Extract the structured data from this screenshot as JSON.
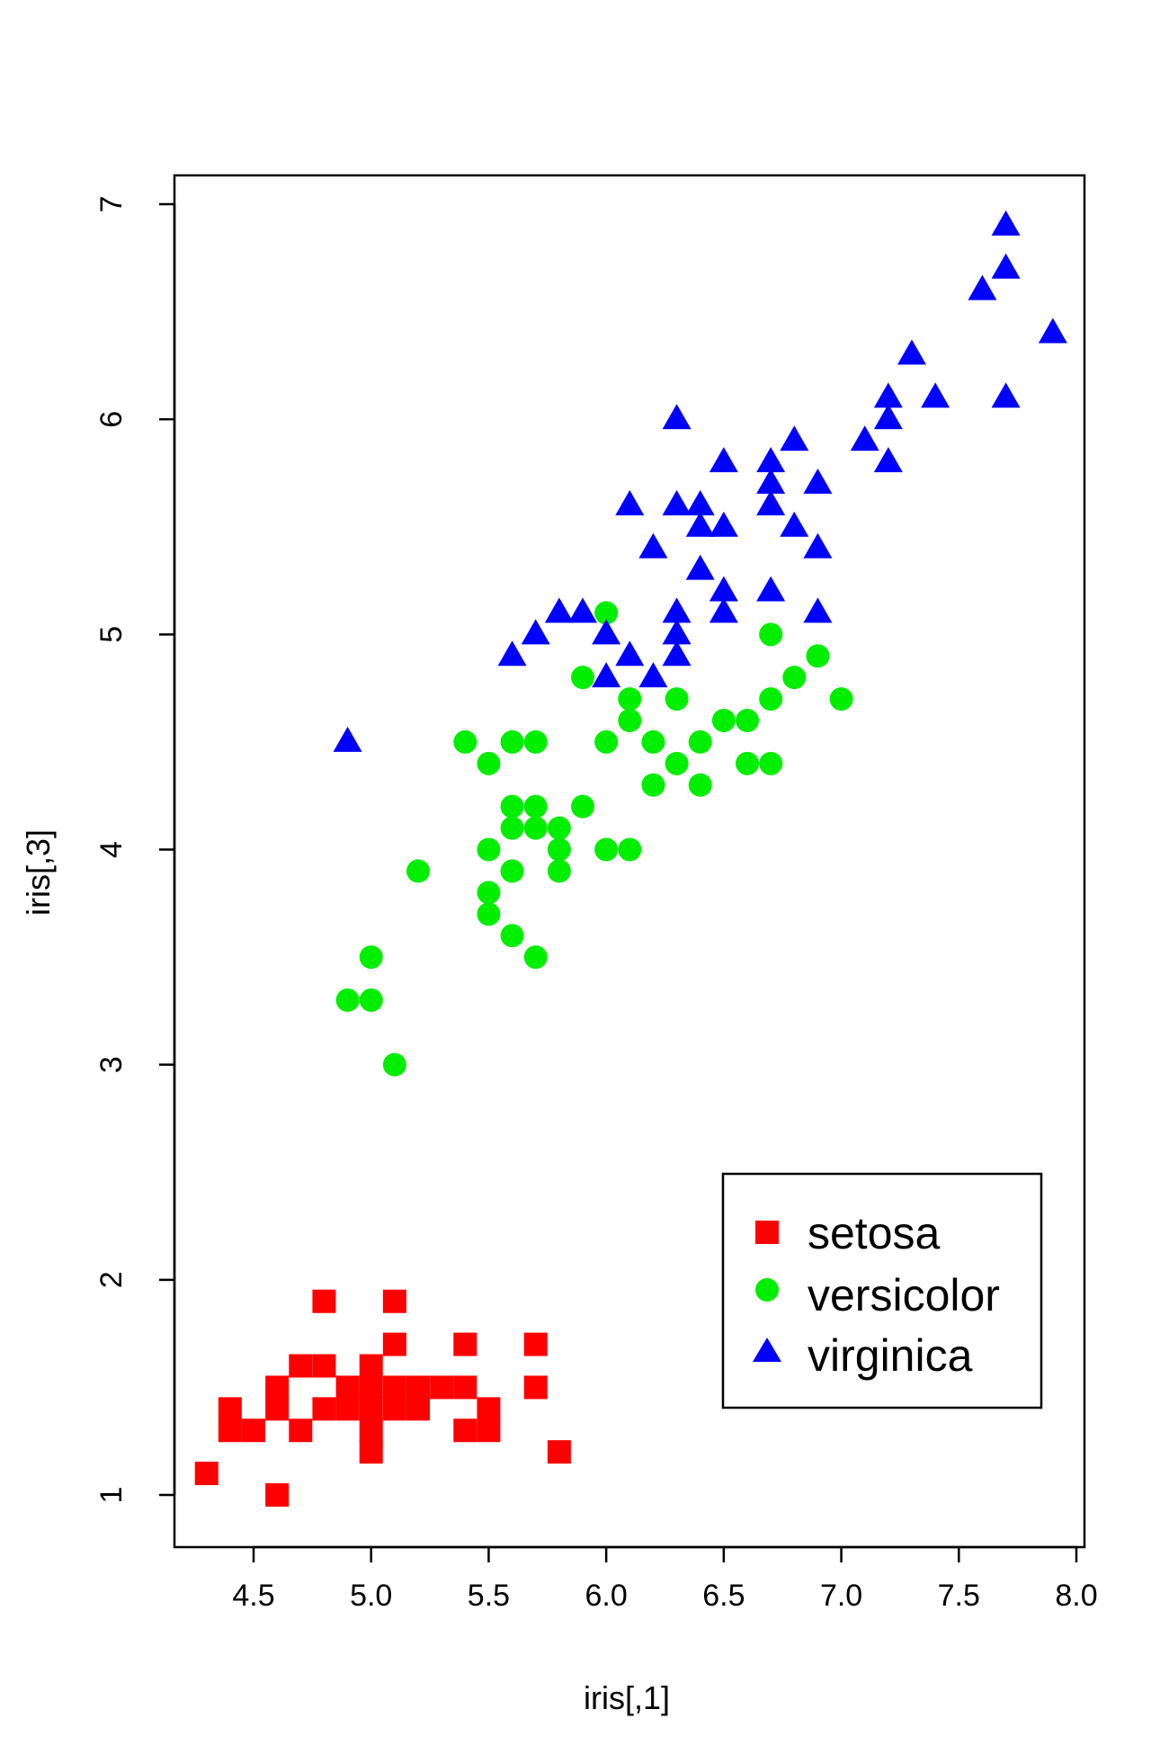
{
  "chart_data": {
    "type": "scatter",
    "title": "",
    "xlabel": "iris[,1]",
    "ylabel": "iris[,3]",
    "xlim": [
      4.2,
      8.0
    ],
    "ylim": [
      0.8,
      7.1
    ],
    "x_ticks": [
      4.5,
      5.0,
      5.5,
      6.0,
      6.5,
      7.0,
      7.5,
      8.0
    ],
    "x_tick_labels": [
      "4.5",
      "5.0",
      "5.5",
      "6.0",
      "6.5",
      "7.0",
      "7.5",
      "8.0"
    ],
    "y_ticks": [
      1,
      2,
      3,
      4,
      5,
      6,
      7
    ],
    "y_tick_labels": [
      "1",
      "2",
      "3",
      "4",
      "5",
      "6",
      "7"
    ],
    "grid": false,
    "legend_position": "bottom-right",
    "series": [
      {
        "name": "setosa",
        "marker": "square",
        "color": "#ff0000",
        "points": [
          [
            4.3,
            1.1
          ],
          [
            4.4,
            1.4
          ],
          [
            4.4,
            1.3
          ],
          [
            4.5,
            1.3
          ],
          [
            4.6,
            1.0
          ],
          [
            4.6,
            1.4
          ],
          [
            4.6,
            1.5
          ],
          [
            4.7,
            1.3
          ],
          [
            4.7,
            1.6
          ],
          [
            4.8,
            1.4
          ],
          [
            4.8,
            1.6
          ],
          [
            4.8,
            1.9
          ],
          [
            4.9,
            1.4
          ],
          [
            4.9,
            1.5
          ],
          [
            5.0,
            1.2
          ],
          [
            5.0,
            1.3
          ],
          [
            5.0,
            1.4
          ],
          [
            5.0,
            1.5
          ],
          [
            5.0,
            1.6
          ],
          [
            5.1,
            1.4
          ],
          [
            5.1,
            1.5
          ],
          [
            5.1,
            1.7
          ],
          [
            5.1,
            1.9
          ],
          [
            5.2,
            1.4
          ],
          [
            5.2,
            1.5
          ],
          [
            5.3,
            1.5
          ],
          [
            5.4,
            1.3
          ],
          [
            5.4,
            1.5
          ],
          [
            5.4,
            1.7
          ],
          [
            5.5,
            1.3
          ],
          [
            5.5,
            1.4
          ],
          [
            5.7,
            1.5
          ],
          [
            5.7,
            1.7
          ],
          [
            5.8,
            1.2
          ]
        ]
      },
      {
        "name": "versicolor",
        "marker": "circle",
        "color": "#00ee00",
        "points": [
          [
            4.9,
            3.3
          ],
          [
            5.0,
            3.3
          ],
          [
            5.0,
            3.5
          ],
          [
            5.1,
            3.0
          ],
          [
            5.2,
            3.9
          ],
          [
            5.4,
            4.5
          ],
          [
            5.5,
            3.7
          ],
          [
            5.5,
            3.8
          ],
          [
            5.5,
            4.0
          ],
          [
            5.5,
            4.4
          ],
          [
            5.6,
            3.6
          ],
          [
            5.6,
            3.9
          ],
          [
            5.6,
            4.1
          ],
          [
            5.6,
            4.2
          ],
          [
            5.6,
            4.5
          ],
          [
            5.7,
            3.5
          ],
          [
            5.7,
            4.1
          ],
          [
            5.7,
            4.2
          ],
          [
            5.7,
            4.5
          ],
          [
            5.8,
            3.9
          ],
          [
            5.8,
            4.0
          ],
          [
            5.8,
            4.1
          ],
          [
            5.9,
            4.2
          ],
          [
            5.9,
            4.8
          ],
          [
            6.0,
            4.0
          ],
          [
            6.0,
            4.5
          ],
          [
            6.0,
            5.1
          ],
          [
            6.1,
            4.0
          ],
          [
            6.1,
            4.6
          ],
          [
            6.1,
            4.7
          ],
          [
            6.2,
            4.3
          ],
          [
            6.2,
            4.5
          ],
          [
            6.3,
            4.4
          ],
          [
            6.3,
            4.7
          ],
          [
            6.4,
            4.3
          ],
          [
            6.4,
            4.5
          ],
          [
            6.5,
            4.6
          ],
          [
            6.6,
            4.4
          ],
          [
            6.6,
            4.6
          ],
          [
            6.7,
            4.4
          ],
          [
            6.7,
            4.7
          ],
          [
            6.7,
            5.0
          ],
          [
            6.8,
            4.8
          ],
          [
            6.9,
            4.9
          ],
          [
            7.0,
            4.7
          ]
        ]
      },
      {
        "name": "virginica",
        "marker": "triangle",
        "color": "#0000ff",
        "points": [
          [
            4.9,
            4.5
          ],
          [
            5.6,
            4.9
          ],
          [
            5.7,
            5.0
          ],
          [
            5.8,
            5.1
          ],
          [
            5.9,
            5.1
          ],
          [
            6.0,
            4.8
          ],
          [
            6.0,
            5.0
          ],
          [
            6.1,
            4.9
          ],
          [
            6.1,
            5.6
          ],
          [
            6.2,
            4.8
          ],
          [
            6.2,
            5.4
          ],
          [
            6.3,
            4.9
          ],
          [
            6.3,
            5.0
          ],
          [
            6.3,
            5.1
          ],
          [
            6.3,
            5.6
          ],
          [
            6.3,
            6.0
          ],
          [
            6.4,
            5.3
          ],
          [
            6.4,
            5.5
          ],
          [
            6.4,
            5.6
          ],
          [
            6.5,
            5.1
          ],
          [
            6.5,
            5.2
          ],
          [
            6.5,
            5.5
          ],
          [
            6.5,
            5.8
          ],
          [
            6.7,
            5.2
          ],
          [
            6.7,
            5.6
          ],
          [
            6.7,
            5.7
          ],
          [
            6.7,
            5.8
          ],
          [
            6.8,
            5.5
          ],
          [
            6.8,
            5.9
          ],
          [
            6.9,
            5.1
          ],
          [
            6.9,
            5.4
          ],
          [
            6.9,
            5.7
          ],
          [
            7.1,
            5.9
          ],
          [
            7.2,
            5.8
          ],
          [
            7.2,
            6.0
          ],
          [
            7.2,
            6.1
          ],
          [
            7.3,
            6.3
          ],
          [
            7.4,
            6.1
          ],
          [
            7.6,
            6.6
          ],
          [
            7.7,
            6.1
          ],
          [
            7.7,
            6.7
          ],
          [
            7.7,
            6.9
          ],
          [
            7.9,
            6.4
          ]
        ]
      }
    ]
  }
}
